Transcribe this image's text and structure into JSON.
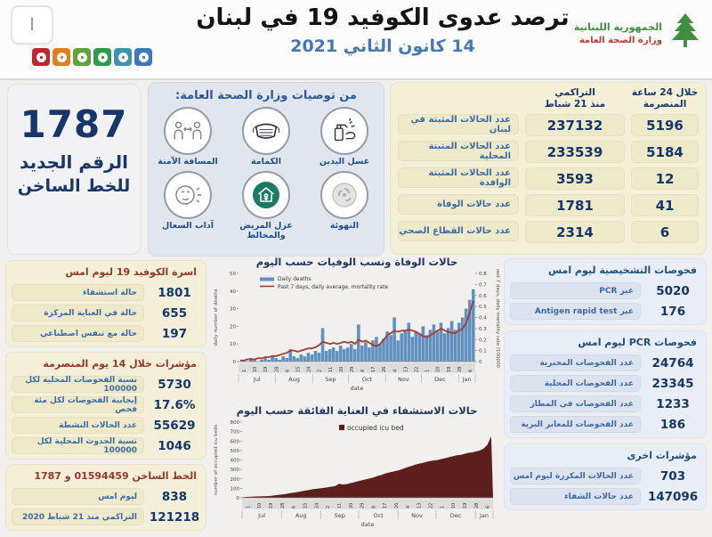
{
  "header": {
    "title": "ترصد عدوى الكوفيد 19 في لبنان",
    "date": "14 كانون الثاني 2021",
    "logo_line1": "الجمهورية اللبنانية",
    "logo_line2": "وزارة الصحة العامة",
    "corner_button": "ا",
    "squares": [
      "#c2252d",
      "#e07e22",
      "#61a03a",
      "#2f9b4e",
      "#3b93b0",
      "#3c78bd"
    ]
  },
  "hotline_panel": {
    "number": "1787",
    "line1": "الرقم الجديد",
    "line2": "للخط الساخن"
  },
  "recommendations": {
    "title": "من توصيات وزارة الصحة العامة:",
    "items": [
      {
        "icon": "hand-wash",
        "label": "غسل اليدين"
      },
      {
        "icon": "mask",
        "label": "الكمامة"
      },
      {
        "icon": "safe-distance",
        "label": "المسافة الآمنة"
      },
      {
        "icon": "ventilation",
        "label": "التهوئة"
      },
      {
        "icon": "isolation",
        "label": "عزل المريض والمخالط"
      },
      {
        "icon": "cough-etiquette",
        "label": "آداب السعال"
      }
    ]
  },
  "summary_table": {
    "col24_line1": "خلال 24 ساعة",
    "col24_line2": "المنصرمة",
    "cum_line1": "التراكمي",
    "cum_line2": "منذ 21 شباط",
    "rows": [
      {
        "label": "عدد الحالات المثبتة في لبنان",
        "cumulative": "237132",
        "last24h": "5196"
      },
      {
        "label": "عدد الحالات المثبتة المحلية",
        "cumulative": "233539",
        "last24h": "5184"
      },
      {
        "label": "عدد الحالات المثبتة الوافدة",
        "cumulative": "3593",
        "last24h": "12"
      },
      {
        "label": "عدد حالات الوفاة",
        "cumulative": "1781",
        "last24h": "41"
      },
      {
        "label": "عدد حالات القطاع الصحي",
        "cumulative": "2314",
        "last24h": "6"
      }
    ]
  },
  "left_sections": [
    {
      "title": "اسرة الكوفيد 19 ليوم امس",
      "rows": [
        {
          "value": "1801",
          "label": "حالة استشفاء"
        },
        {
          "value": "655",
          "label": "حالة في العناية المركزة"
        },
        {
          "value": "197",
          "label": "حالة مع تنفس اصطناعي"
        }
      ]
    },
    {
      "title": "مؤشرات خلال 14 يوم المنصرمة",
      "rows": [
        {
          "value": "5730",
          "label": "نسبة الفحوصات المحلية لكل 100000"
        },
        {
          "value": "17.6%",
          "label": "إيجابية الفحوصات لكل مئة فحص"
        },
        {
          "value": "55629",
          "label": "عدد الحالات النشطة"
        },
        {
          "value": "1046",
          "label": "نسبة الحدوث المحلية لكل 100000"
        }
      ]
    },
    {
      "title": "الخط الساخن 01594459 و 1787",
      "rows": [
        {
          "value": "838",
          "label": "ليوم امس"
        },
        {
          "value": "121218",
          "label": "التراكمي منذ 21 شباط 2020"
        }
      ]
    }
  ],
  "right_sections": [
    {
      "title": "فحوصات التشخيصية ليوم امس",
      "rows": [
        {
          "value": "5020",
          "label": "عبر PCR"
        },
        {
          "value": "176",
          "label": "عبر Antigen rapid test"
        }
      ]
    },
    {
      "title": "فحوصات PCR ليوم امس",
      "rows": [
        {
          "value": "24764",
          "label": "عدد الفحوصات المخبرية"
        },
        {
          "value": "23345",
          "label": "عدد الفحوصات المحلية"
        },
        {
          "value": "1233",
          "label": "عدد الفحوصات في المطار"
        },
        {
          "value": "186",
          "label": "عدد الفحوصات للمعابر البرية"
        }
      ]
    },
    {
      "title": "مؤشرات اخرى",
      "rows": [
        {
          "value": "703",
          "label": "عدد الحالات المكررة  ليوم امس"
        },
        {
          "value": "147096",
          "label": "عدد حالات الشفاء"
        }
      ]
    }
  ],
  "chart_data": [
    {
      "type": "bar",
      "title": "حالات الوفاة ونسب الوفيات حسب اليوم",
      "xlabel": "date",
      "ylabel_left": "daily number of deaths",
      "ylabel_right": "past 7 days, daily mortality rate /100000",
      "ylim_left": [
        0,
        50
      ],
      "yticks_left": [
        0,
        10,
        20,
        30,
        40,
        50
      ],
      "ylim_right": [
        0,
        0.8
      ],
      "yticks_right": [
        0,
        0.1,
        0.2,
        0.3,
        0.4,
        0.5,
        0.6,
        0.7,
        0.8
      ],
      "months": [
        "Jul",
        "Aug",
        "Sep",
        "Oct",
        "Nov",
        "Dec",
        "Jan"
      ],
      "month_days": [
        31,
        31,
        30,
        31,
        30,
        31,
        14
      ],
      "day_ticks": [
        "1",
        "10",
        "19",
        "28",
        "6",
        "15",
        "24",
        "2",
        "11",
        "20",
        "29",
        "8",
        "17",
        "26",
        "4",
        "13",
        "22",
        "1",
        "10",
        "19",
        "28",
        "6"
      ],
      "legend_position": "top-left",
      "grid": false,
      "series": [
        {
          "name": "Daily deaths",
          "type": "bar",
          "axis": "left",
          "color": "#6191c1",
          "values": [
            0,
            1,
            0,
            2,
            1,
            0,
            1,
            2,
            1,
            3,
            2,
            1,
            3,
            2,
            7,
            3,
            2,
            4,
            3,
            5,
            4,
            6,
            5,
            19,
            6,
            7,
            8,
            6,
            9,
            7,
            8,
            10,
            7,
            21,
            9,
            11,
            8,
            12,
            14,
            10,
            13,
            17,
            15,
            25,
            12,
            16,
            18,
            22,
            14,
            17,
            16,
            20,
            15,
            18,
            21,
            17,
            22,
            16,
            19,
            23,
            18,
            22,
            25,
            30,
            35,
            41
          ]
        },
        {
          "name": "Past 7 days, daily average, mortality rate",
          "type": "line",
          "axis": "right",
          "color": "#a93a32",
          "values": [
            0.01,
            0.01,
            0.02,
            0.02,
            0.02,
            0.03,
            0.03,
            0.04,
            0.04,
            0.05,
            0.05,
            0.06,
            0.07,
            0.08,
            0.1,
            0.1,
            0.09,
            0.1,
            0.11,
            0.12,
            0.12,
            0.13,
            0.15,
            0.18,
            0.17,
            0.16,
            0.17,
            0.16,
            0.17,
            0.18,
            0.17,
            0.18,
            0.16,
            0.2,
            0.18,
            0.19,
            0.17,
            0.15,
            0.14,
            0.16,
            0.2,
            0.24,
            0.26,
            0.28,
            0.27,
            0.28,
            0.28,
            0.29,
            0.28,
            0.27,
            0.25,
            0.23,
            0.22,
            0.24,
            0.26,
            0.28,
            0.3,
            0.28,
            0.27,
            0.26,
            0.26,
            0.28,
            0.3,
            0.35,
            0.45,
            0.55
          ]
        }
      ]
    },
    {
      "type": "area",
      "title": "حالات الاستشفاء في العناية الفائقة حسب اليوم",
      "xlabel": "date",
      "ylabel_left": "number of occupied icu beds",
      "ylim_left": [
        0,
        800
      ],
      "yticks_left": [
        0,
        100,
        200,
        300,
        400,
        500,
        600,
        700,
        800
      ],
      "months": [
        "Jul",
        "Aug",
        "Sep",
        "Oct",
        "Nov",
        "Dec",
        "Jan"
      ],
      "month_days": [
        31,
        31,
        30,
        31,
        30,
        31,
        14
      ],
      "day_ticks": [
        "1",
        "10",
        "19",
        "28",
        "6",
        "15",
        "24",
        "2",
        "11",
        "20",
        "29",
        "8",
        "17",
        "26",
        "4",
        "13",
        "22",
        "1",
        "10",
        "19",
        "28",
        "6"
      ],
      "legend_position": "top-center",
      "grid": false,
      "series": [
        {
          "name": "occupied icu bed",
          "type": "area",
          "axis": "left",
          "color": "#5c1f1d",
          "values": [
            8,
            10,
            12,
            14,
            15,
            16,
            18,
            20,
            25,
            30,
            35,
            40,
            48,
            55,
            60,
            68,
            75,
            82,
            90,
            95,
            100,
            105,
            110,
            118,
            125,
            150,
            140,
            145,
            155,
            165,
            175,
            185,
            195,
            205,
            215,
            230,
            240,
            255,
            265,
            275,
            285,
            295,
            310,
            325,
            335,
            350,
            360,
            370,
            380,
            390,
            395,
            400,
            410,
            420,
            430,
            440,
            450,
            455,
            465,
            475,
            480,
            490,
            500,
            520,
            560,
            650
          ]
        }
      ]
    }
  ],
  "colors": {
    "value_navy": "#14366b",
    "label_blue": "#3b6ba6",
    "maroon_header": "#96362b",
    "cream_panel": "#f3efd9",
    "blue_panel": "#e9edf5",
    "date_blue": "#4577b5",
    "logo_green": "#3f8f3f",
    "logo_red": "#c03a2b"
  }
}
